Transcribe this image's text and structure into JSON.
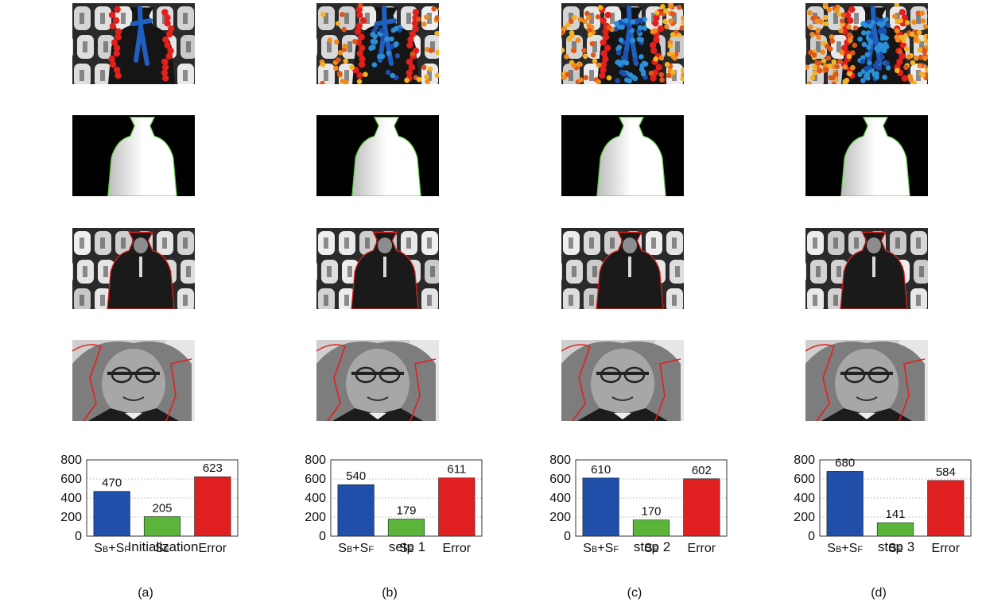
{
  "panels": [
    {
      "sub_label": "(a)",
      "chart_data": {
        "type": "bar",
        "title": "Initialization",
        "categories": [
          "SB+SF",
          "SE",
          "Error"
        ],
        "values": [
          470,
          205,
          623
        ],
        "ylim": [
          0,
          800
        ],
        "yticks": [
          0,
          200,
          400,
          600,
          800
        ],
        "grid": true,
        "colors": [
          "#1f4fa8",
          "#5ab53a",
          "#e02020"
        ]
      }
    },
    {
      "sub_label": "(b)",
      "chart_data": {
        "type": "bar",
        "title": "setp 1",
        "categories": [
          "SB+SF",
          "SE",
          "Error"
        ],
        "values": [
          540,
          179,
          611
        ],
        "ylim": [
          0,
          800
        ],
        "yticks": [
          0,
          200,
          400,
          600,
          800
        ],
        "grid": true,
        "colors": [
          "#1f4fa8",
          "#5ab53a",
          "#e02020"
        ]
      }
    },
    {
      "sub_label": "(c)",
      "chart_data": {
        "type": "bar",
        "title": "step 2",
        "categories": [
          "SB+SF",
          "SE",
          "Error"
        ],
        "values": [
          610,
          170,
          602
        ],
        "ylim": [
          0,
          800
        ],
        "yticks": [
          0,
          200,
          400,
          600,
          800
        ],
        "grid": true,
        "colors": [
          "#1f4fa8",
          "#5ab53a",
          "#e02020"
        ]
      }
    },
    {
      "sub_label": "(d)",
      "chart_data": {
        "type": "bar",
        "title": "step 3",
        "categories": [
          "SB+SF",
          "SE",
          "Error"
        ],
        "values": [
          680,
          141,
          584
        ],
        "ylim": [
          0,
          800
        ],
        "yticks": [
          0,
          200,
          400,
          600,
          800
        ],
        "grid": true,
        "colors": [
          "#1f4fa8",
          "#5ab53a",
          "#e02020"
        ]
      }
    }
  ],
  "category_glyphs": [
    {
      "parts": [
        [
          "S",
          "B"
        ],
        [
          "+",
          ""
        ],
        [
          "S",
          "F"
        ]
      ]
    },
    {
      "parts": [
        [
          "S",
          "E"
        ]
      ]
    },
    {
      "parts": [
        [
          "Error",
          ""
        ]
      ]
    }
  ]
}
